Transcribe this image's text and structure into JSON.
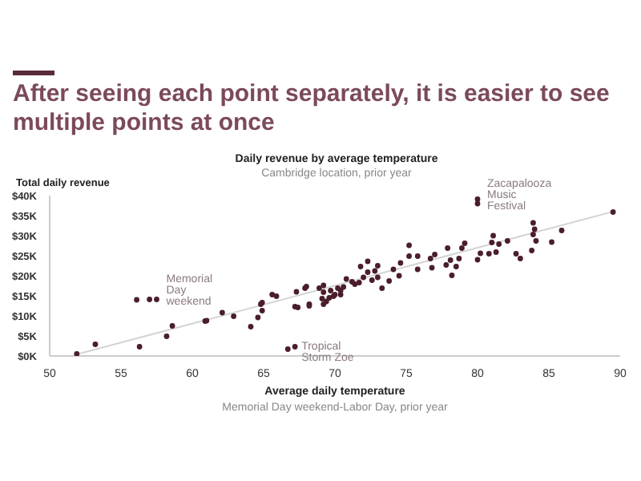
{
  "chart_data": {
    "type": "scatter",
    "title": "After seeing each point separately, it is easier to see multiple points at once",
    "subtitle": "Daily revenue by average temperature",
    "xlabel": "Average daily temperature",
    "ylabel": "Total daily revenue",
    "xlim": [
      50,
      90
    ],
    "xticks": [
      50,
      55,
      60,
      65,
      70,
      75,
      80,
      85,
      90
    ],
    "ylim": [
      0,
      40
    ],
    "yticks": [
      {
        "value": 0,
        "label": "$0K"
      },
      {
        "value": 5,
        "label": "$5K"
      },
      {
        "value": 10,
        "label": "$10K"
      },
      {
        "value": 15,
        "label": "$15K"
      },
      {
        "value": 20,
        "label": "$20K"
      },
      {
        "value": 25,
        "label": "$25K"
      },
      {
        "value": 30,
        "label": "$30K"
      },
      {
        "value": 35,
        "label": "$35K"
      },
      {
        "value": 40,
        "label": "$40K"
      }
    ],
    "series": [
      {
        "type": "scatter",
        "marker": "circle",
        "color": "#4a1e2a",
        "x": [
          51.9,
          53.2,
          56.1,
          57.0,
          57.5,
          56.3,
          58.6,
          58.2,
          60.9,
          61.0,
          62.1,
          62.9,
          64.1,
          64.6,
          64.8,
          64.9,
          64.9,
          65.6,
          65.9,
          66.7,
          67.2,
          67.3,
          67.2,
          67.4,
          67.9,
          68.0,
          68.2,
          68.2,
          89.5,
          80.0,
          80.0,
          85.9,
          85.2,
          83.9,
          84.0,
          83.9,
          84.1,
          83.8,
          83.0,
          82.7,
          82.1,
          81.5,
          81.1,
          81.0,
          81.3,
          80.8,
          80.2,
          80.0,
          79.1,
          78.9,
          78.7,
          78.5,
          78.2,
          78.1,
          77.9,
          77.8,
          77.0,
          76.7,
          76.8,
          75.8,
          75.8,
          75.2,
          75.2,
          74.6,
          74.5,
          74.1,
          73.8,
          73.3,
          73.0,
          73.0,
          72.8,
          72.6,
          72.3,
          72.3,
          72.0,
          71.8,
          71.7,
          71.4,
          71.2,
          70.8,
          70.6,
          70.4,
          70.2,
          70.0,
          69.7,
          69.6,
          69.4,
          69.2,
          69.2,
          69.1,
          68.9,
          69.2,
          69.9,
          70.4
        ],
        "values": [
          0.5,
          2.9,
          14,
          14.1,
          14.1,
          2.3,
          7.5,
          4.9,
          8.7,
          8.8,
          10.8,
          9.9,
          7.3,
          9.6,
          12.9,
          13.3,
          11.3,
          15.3,
          14.9,
          1.7,
          2.3,
          16,
          12.3,
          12.1,
          16.9,
          17.3,
          12.9,
          12.5,
          35.9,
          39.1,
          38,
          31.3,
          28.4,
          33.2,
          31.6,
          30.3,
          28.7,
          26.3,
          24.3,
          25.5,
          28.7,
          27.9,
          30,
          28.3,
          25.9,
          25.5,
          25.6,
          24,
          28.1,
          26.9,
          24.3,
          22.3,
          20.1,
          23.9,
          26.9,
          22.7,
          25.3,
          24.3,
          22,
          21.6,
          24.9,
          27.6,
          24.9,
          23.2,
          20,
          21.6,
          18.7,
          16.9,
          22.5,
          19.6,
          21.2,
          18.9,
          23.6,
          20.9,
          19.6,
          22.3,
          18.3,
          17.9,
          18.5,
          19.2,
          17.2,
          16.3,
          16.9,
          15.3,
          16.3,
          14.5,
          13.6,
          15.9,
          17.6,
          14.3,
          16.9,
          12.9,
          14.9,
          15.3
        ]
      },
      {
        "type": "line",
        "color": "#d4d4d4",
        "x": [
          52,
          89.5
        ],
        "values": [
          0.5,
          36
        ]
      }
    ],
    "annotations": [
      {
        "text": "Memorial Day weekend",
        "x": 57.5,
        "y": 14.1
      },
      {
        "text": "Zacapalooza Music Festival",
        "x": 80,
        "y": 39.1
      },
      {
        "text": "Tropical Storm Zoe",
        "x": 67.2,
        "y": 2.3
      },
      "Cambridge location, prior year",
      "Memorial Day weekend-Labor Day, prior year"
    ]
  }
}
